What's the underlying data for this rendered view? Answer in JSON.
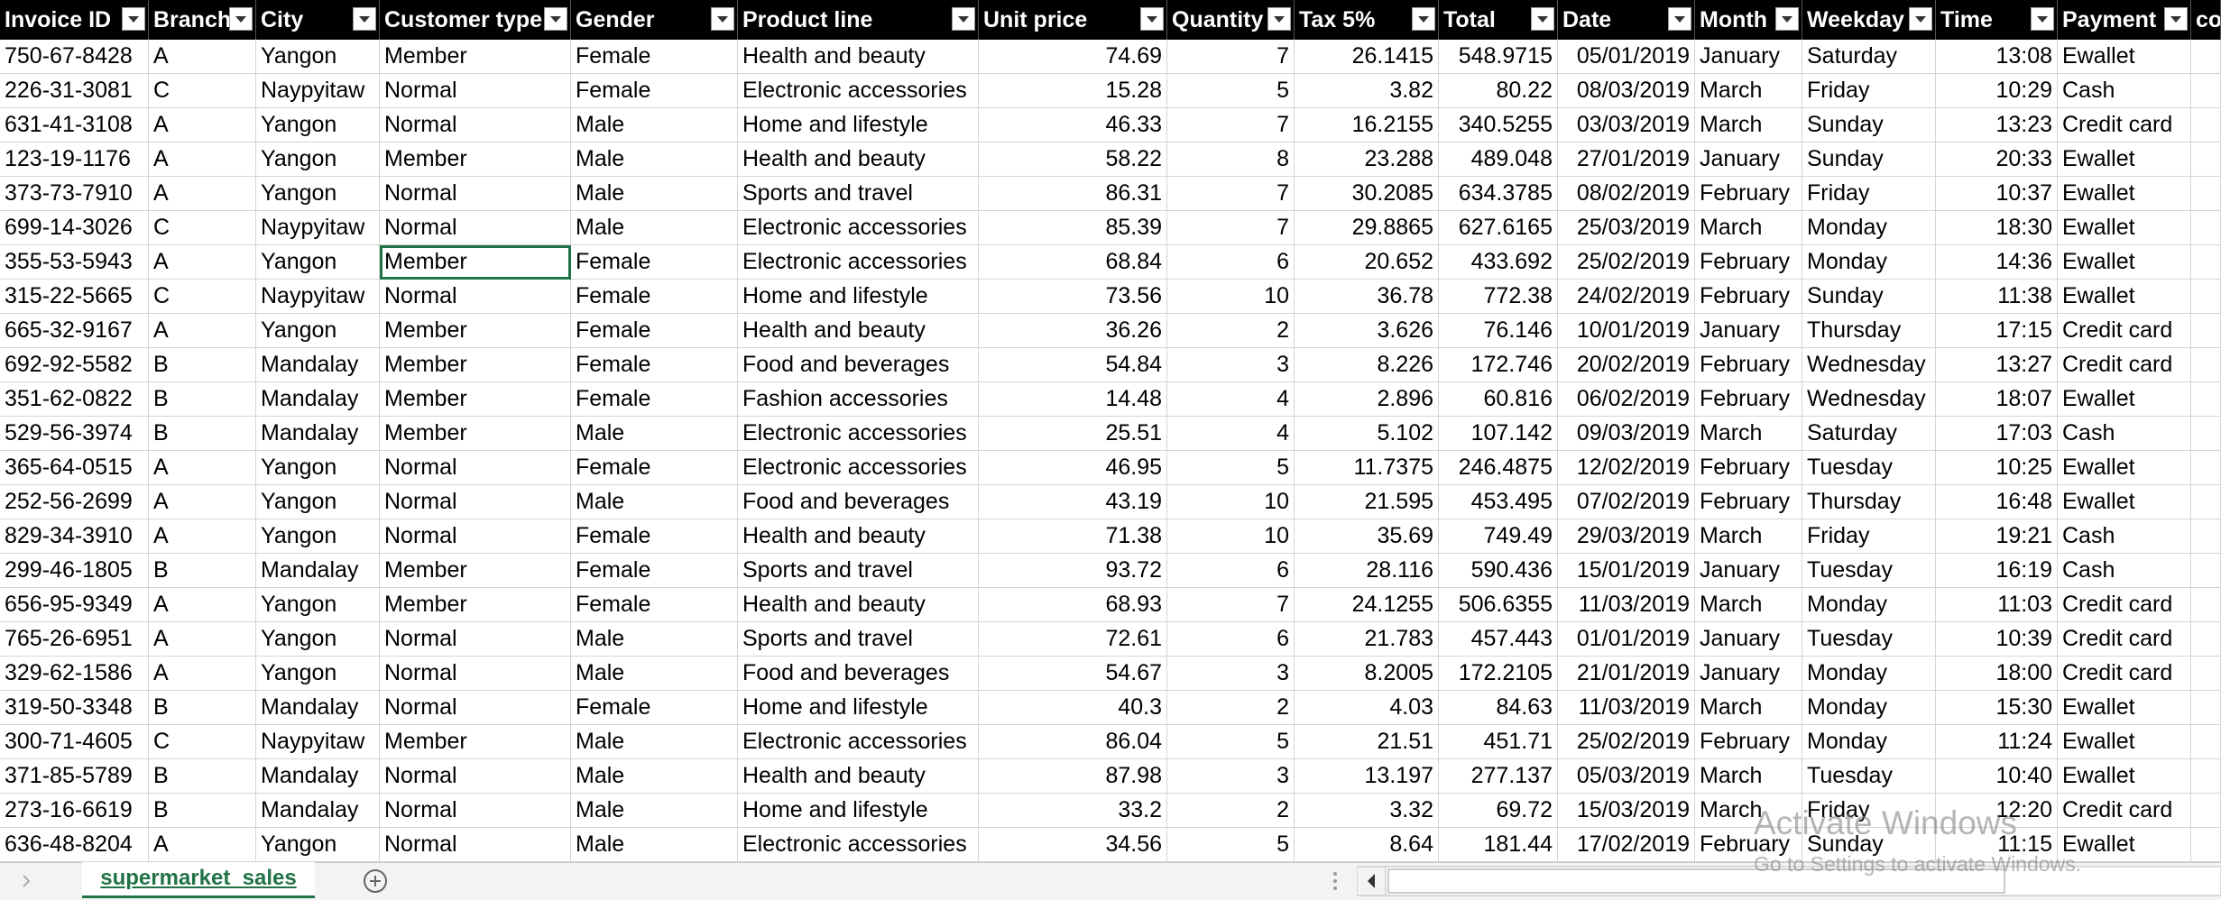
{
  "table": {
    "headers": [
      "Invoice ID",
      "Branch",
      "City",
      "Customer type",
      "Gender",
      "Product line",
      "Unit price",
      "Quantity",
      "Tax 5%",
      "Total",
      "Date",
      "Month",
      "Weekday",
      "Time",
      "Payment",
      "co"
    ],
    "rows": [
      [
        "750-67-8428",
        "A",
        "Yangon",
        "Member",
        "Female",
        "Health and beauty",
        "74.69",
        "7",
        "26.1415",
        "548.9715",
        "05/01/2019",
        "January",
        "Saturday",
        "13:08",
        "Ewallet"
      ],
      [
        "226-31-3081",
        "C",
        "Naypyitaw",
        "Normal",
        "Female",
        "Electronic accessories",
        "15.28",
        "5",
        "3.82",
        "80.22",
        "08/03/2019",
        "March",
        "Friday",
        "10:29",
        "Cash"
      ],
      [
        "631-41-3108",
        "A",
        "Yangon",
        "Normal",
        "Male",
        "Home and lifestyle",
        "46.33",
        "7",
        "16.2155",
        "340.5255",
        "03/03/2019",
        "March",
        "Sunday",
        "13:23",
        "Credit card"
      ],
      [
        "123-19-1176",
        "A",
        "Yangon",
        "Member",
        "Male",
        "Health and beauty",
        "58.22",
        "8",
        "23.288",
        "489.048",
        "27/01/2019",
        "January",
        "Sunday",
        "20:33",
        "Ewallet"
      ],
      [
        "373-73-7910",
        "A",
        "Yangon",
        "Normal",
        "Male",
        "Sports and travel",
        "86.31",
        "7",
        "30.2085",
        "634.3785",
        "08/02/2019",
        "February",
        "Friday",
        "10:37",
        "Ewallet"
      ],
      [
        "699-14-3026",
        "C",
        "Naypyitaw",
        "Normal",
        "Male",
        "Electronic accessories",
        "85.39",
        "7",
        "29.8865",
        "627.6165",
        "25/03/2019",
        "March",
        "Monday",
        "18:30",
        "Ewallet"
      ],
      [
        "355-53-5943",
        "A",
        "Yangon",
        "Member",
        "Female",
        "Electronic accessories",
        "68.84",
        "6",
        "20.652",
        "433.692",
        "25/02/2019",
        "February",
        "Monday",
        "14:36",
        "Ewallet"
      ],
      [
        "315-22-5665",
        "C",
        "Naypyitaw",
        "Normal",
        "Female",
        "Home and lifestyle",
        "73.56",
        "10",
        "36.78",
        "772.38",
        "24/02/2019",
        "February",
        "Sunday",
        "11:38",
        "Ewallet"
      ],
      [
        "665-32-9167",
        "A",
        "Yangon",
        "Member",
        "Female",
        "Health and beauty",
        "36.26",
        "2",
        "3.626",
        "76.146",
        "10/01/2019",
        "January",
        "Thursday",
        "17:15",
        "Credit card"
      ],
      [
        "692-92-5582",
        "B",
        "Mandalay",
        "Member",
        "Female",
        "Food and beverages",
        "54.84",
        "3",
        "8.226",
        "172.746",
        "20/02/2019",
        "February",
        "Wednesday",
        "13:27",
        "Credit card"
      ],
      [
        "351-62-0822",
        "B",
        "Mandalay",
        "Member",
        "Female",
        "Fashion accessories",
        "14.48",
        "4",
        "2.896",
        "60.816",
        "06/02/2019",
        "February",
        "Wednesday",
        "18:07",
        "Ewallet"
      ],
      [
        "529-56-3974",
        "B",
        "Mandalay",
        "Member",
        "Male",
        "Electronic accessories",
        "25.51",
        "4",
        "5.102",
        "107.142",
        "09/03/2019",
        "March",
        "Saturday",
        "17:03",
        "Cash"
      ],
      [
        "365-64-0515",
        "A",
        "Yangon",
        "Normal",
        "Female",
        "Electronic accessories",
        "46.95",
        "5",
        "11.7375",
        "246.4875",
        "12/02/2019",
        "February",
        "Tuesday",
        "10:25",
        "Ewallet"
      ],
      [
        "252-56-2699",
        "A",
        "Yangon",
        "Normal",
        "Male",
        "Food and beverages",
        "43.19",
        "10",
        "21.595",
        "453.495",
        "07/02/2019",
        "February",
        "Thursday",
        "16:48",
        "Ewallet"
      ],
      [
        "829-34-3910",
        "A",
        "Yangon",
        "Normal",
        "Female",
        "Health and beauty",
        "71.38",
        "10",
        "35.69",
        "749.49",
        "29/03/2019",
        "March",
        "Friday",
        "19:21",
        "Cash"
      ],
      [
        "299-46-1805",
        "B",
        "Mandalay",
        "Member",
        "Female",
        "Sports and travel",
        "93.72",
        "6",
        "28.116",
        "590.436",
        "15/01/2019",
        "January",
        "Tuesday",
        "16:19",
        "Cash"
      ],
      [
        "656-95-9349",
        "A",
        "Yangon",
        "Member",
        "Female",
        "Health and beauty",
        "68.93",
        "7",
        "24.1255",
        "506.6355",
        "11/03/2019",
        "March",
        "Monday",
        "11:03",
        "Credit card"
      ],
      [
        "765-26-6951",
        "A",
        "Yangon",
        "Normal",
        "Male",
        "Sports and travel",
        "72.61",
        "6",
        "21.783",
        "457.443",
        "01/01/2019",
        "January",
        "Tuesday",
        "10:39",
        "Credit card"
      ],
      [
        "329-62-1586",
        "A",
        "Yangon",
        "Normal",
        "Male",
        "Food and beverages",
        "54.67",
        "3",
        "8.2005",
        "172.2105",
        "21/01/2019",
        "January",
        "Monday",
        "18:00",
        "Credit card"
      ],
      [
        "319-50-3348",
        "B",
        "Mandalay",
        "Normal",
        "Female",
        "Home and lifestyle",
        "40.3",
        "2",
        "4.03",
        "84.63",
        "11/03/2019",
        "March",
        "Monday",
        "15:30",
        "Ewallet"
      ],
      [
        "300-71-4605",
        "C",
        "Naypyitaw",
        "Member",
        "Male",
        "Electronic accessories",
        "86.04",
        "5",
        "21.51",
        "451.71",
        "25/02/2019",
        "February",
        "Monday",
        "11:24",
        "Ewallet"
      ],
      [
        "371-85-5789",
        "B",
        "Mandalay",
        "Normal",
        "Male",
        "Health and beauty",
        "87.98",
        "3",
        "13.197",
        "277.137",
        "05/03/2019",
        "March",
        "Tuesday",
        "10:40",
        "Ewallet"
      ],
      [
        "273-16-6619",
        "B",
        "Mandalay",
        "Normal",
        "Male",
        "Home and lifestyle",
        "33.2",
        "2",
        "3.32",
        "69.72",
        "15/03/2019",
        "March",
        "Friday",
        "12:20",
        "Credit card"
      ],
      [
        "636-48-8204",
        "A",
        "Yangon",
        "Normal",
        "Male",
        "Electronic accessories",
        "34.56",
        "5",
        "8.64",
        "181.44",
        "17/02/2019",
        "February",
        "Sunday",
        "11:15",
        "Ewallet"
      ]
    ]
  },
  "sheet_tab": "supermarket_sales",
  "watermark": {
    "title": "Activate Windows",
    "subtitle": "Go to Settings to activate Windows."
  }
}
